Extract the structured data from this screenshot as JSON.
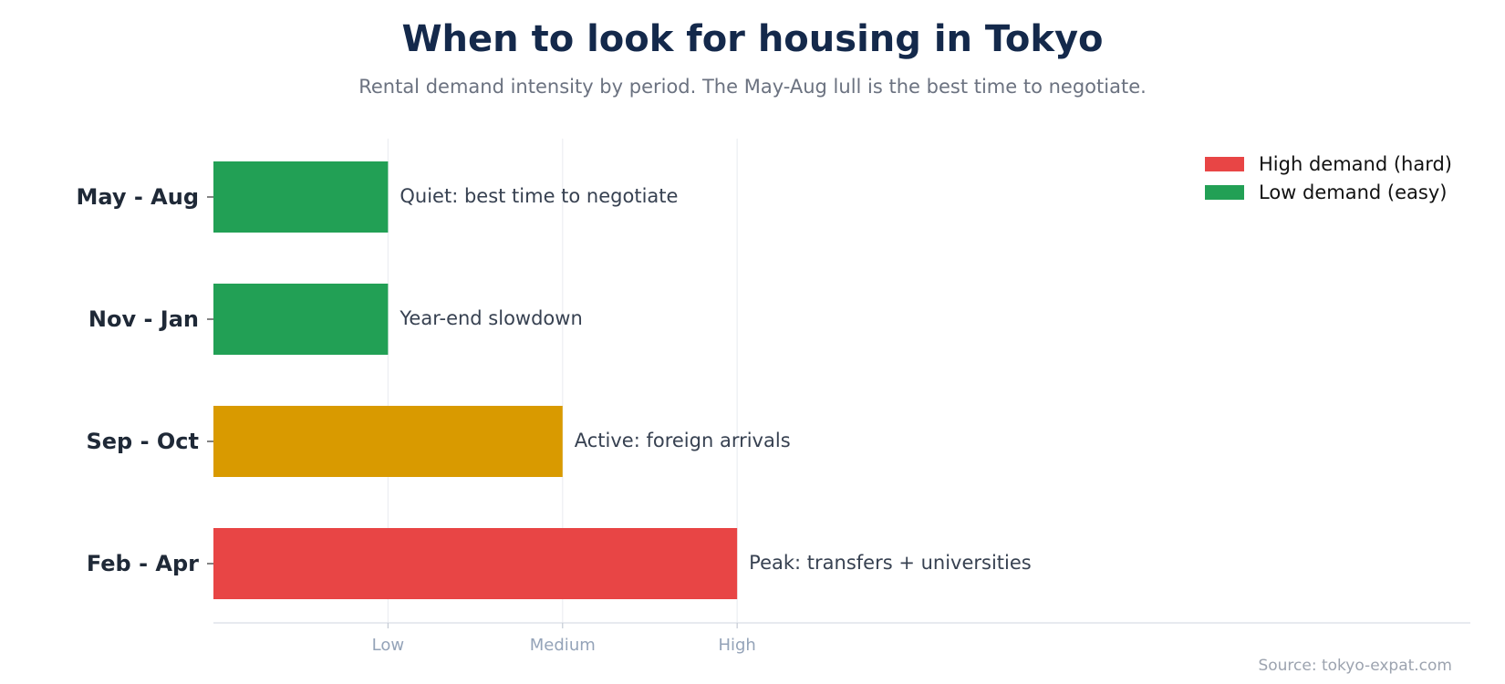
{
  "chart_data": {
    "type": "bar",
    "orientation": "horizontal",
    "title": "When to look for housing in Tokyo",
    "subtitle": "Rental demand intensity by period. The May-Aug lull is the best time to negotiate.",
    "categories": [
      "May - Aug",
      "Nov - Jan",
      "Sep - Oct",
      "Feb - Apr"
    ],
    "values": [
      1,
      1,
      2,
      3
    ],
    "bar_labels": [
      "Quiet: best time to negotiate",
      "Year-end slowdown",
      "Active: foreign arrivals",
      "Peak: transfers + universities"
    ],
    "bar_colors": [
      "#22a055",
      "#22a055",
      "#d99a00",
      "#e84545"
    ],
    "x_ticks": [
      {
        "value": 1,
        "label": "Low"
      },
      {
        "value": 2,
        "label": "Medium"
      },
      {
        "value": 3,
        "label": "High"
      }
    ],
    "xlim": [
      0,
      7.2
    ],
    "xlabel": "",
    "ylabel": "",
    "grid": "vertical",
    "legend": {
      "placement": "top-right",
      "entries": [
        {
          "label": "High demand (hard)",
          "color": "#e84545"
        },
        {
          "label": "Low demand (easy)",
          "color": "#22a055"
        }
      ]
    },
    "source": "Source: tokyo-expat.com"
  }
}
